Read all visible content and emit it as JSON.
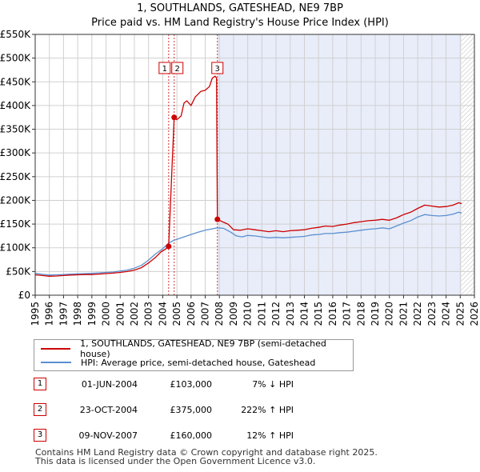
{
  "chart_data": {
    "type": "line",
    "title": "1, SOUTHLANDS, GATESHEAD, NE9 7BP",
    "subtitle": "Price paid vs. HM Land Registry's House Price Index (HPI)",
    "xlabel": "",
    "ylabel": "",
    "xlim": [
      1995,
      2026
    ],
    "ylim": [
      0,
      550000
    ],
    "y_ticks": [
      {
        "value": 0,
        "label": "£0"
      },
      {
        "value": 50000,
        "label": "£50K"
      },
      {
        "value": 100000,
        "label": "£100K"
      },
      {
        "value": 150000,
        "label": "£150K"
      },
      {
        "value": 200000,
        "label": "£200K"
      },
      {
        "value": 250000,
        "label": "£250K"
      },
      {
        "value": 300000,
        "label": "£300K"
      },
      {
        "value": 350000,
        "label": "£350K"
      },
      {
        "value": 400000,
        "label": "£400K"
      },
      {
        "value": 450000,
        "label": "£450K"
      },
      {
        "value": 500000,
        "label": "£500K"
      },
      {
        "value": 550000,
        "label": "£550K"
      }
    ],
    "x_ticks": [
      "1995",
      "1996",
      "1997",
      "1998",
      "1999",
      "2000",
      "2001",
      "2002",
      "2003",
      "2004",
      "2005",
      "2006",
      "2007",
      "2008",
      "2009",
      "2010",
      "2011",
      "2012",
      "2013",
      "2014",
      "2015",
      "2016",
      "2017",
      "2018",
      "2019",
      "2020",
      "2021",
      "2022",
      "2023",
      "2024",
      "2025",
      "2026"
    ],
    "grid": true,
    "shaded_after": 2007.86,
    "hatched_after": 2025.1,
    "series": [
      {
        "name": "1, SOUTHLANDS, GATESHEAD, NE9 7BP (semi-detached house)",
        "color": "#cc0000",
        "points": [
          [
            1995.0,
            43000
          ],
          [
            1995.5,
            41500
          ],
          [
            1996.0,
            40000
          ],
          [
            1996.5,
            40500
          ],
          [
            1997.0,
            41500
          ],
          [
            1997.5,
            42500
          ],
          [
            1998.0,
            43000
          ],
          [
            1998.5,
            43500
          ],
          [
            1999.0,
            43500
          ],
          [
            1999.5,
            44500
          ],
          [
            2000.0,
            45500
          ],
          [
            2000.5,
            46500
          ],
          [
            2001.0,
            48000
          ],
          [
            2001.5,
            50000
          ],
          [
            2002.0,
            53000
          ],
          [
            2002.5,
            58000
          ],
          [
            2003.0,
            68000
          ],
          [
            2003.5,
            80000
          ],
          [
            2003.9,
            92000
          ],
          [
            2004.2,
            97000
          ],
          [
            2004.42,
            103000
          ],
          [
            2004.81,
            375000
          ],
          [
            2005.0,
            370000
          ],
          [
            2005.3,
            378000
          ],
          [
            2005.5,
            405000
          ],
          [
            2005.7,
            410000
          ],
          [
            2006.0,
            400000
          ],
          [
            2006.3,
            418000
          ],
          [
            2006.7,
            430000
          ],
          [
            2007.0,
            432000
          ],
          [
            2007.3,
            440000
          ],
          [
            2007.5,
            458000
          ],
          [
            2007.7,
            462000
          ],
          [
            2007.8,
            458000
          ],
          [
            2007.86,
            160000
          ],
          [
            2008.2,
            155000
          ],
          [
            2008.6,
            150000
          ],
          [
            2009.0,
            138000
          ],
          [
            2009.5,
            137000
          ],
          [
            2010.0,
            140000
          ],
          [
            2010.5,
            138000
          ],
          [
            2011.0,
            136000
          ],
          [
            2011.5,
            134000
          ],
          [
            2012.0,
            136000
          ],
          [
            2012.5,
            134000
          ],
          [
            2013.0,
            136000
          ],
          [
            2013.5,
            137000
          ],
          [
            2014.0,
            138000
          ],
          [
            2014.5,
            141000
          ],
          [
            2015.0,
            143000
          ],
          [
            2015.5,
            146000
          ],
          [
            2016.0,
            145000
          ],
          [
            2016.5,
            148000
          ],
          [
            2017.0,
            150000
          ],
          [
            2017.5,
            153000
          ],
          [
            2018.0,
            155000
          ],
          [
            2018.5,
            157000
          ],
          [
            2019.0,
            158000
          ],
          [
            2019.5,
            160000
          ],
          [
            2020.0,
            158000
          ],
          [
            2020.5,
            163000
          ],
          [
            2021.0,
            170000
          ],
          [
            2021.5,
            175000
          ],
          [
            2022.0,
            183000
          ],
          [
            2022.5,
            190000
          ],
          [
            2023.0,
            188000
          ],
          [
            2023.5,
            186000
          ],
          [
            2024.0,
            187000
          ],
          [
            2024.5,
            190000
          ],
          [
            2024.9,
            195000
          ],
          [
            2025.1,
            193000
          ]
        ]
      },
      {
        "name": "HPI: Average price, semi-detached house, Gateshead",
        "color": "#5b8fd0",
        "points": [
          [
            1995.0,
            46000
          ],
          [
            1995.5,
            44000
          ],
          [
            1996.0,
            42500
          ],
          [
            1996.5,
            43000
          ],
          [
            1997.0,
            43500
          ],
          [
            1997.5,
            44500
          ],
          [
            1998.0,
            45000
          ],
          [
            1998.5,
            45500
          ],
          [
            1999.0,
            46000
          ],
          [
            1999.5,
            47000
          ],
          [
            2000.0,
            48000
          ],
          [
            2000.5,
            49000
          ],
          [
            2001.0,
            51000
          ],
          [
            2001.5,
            53000
          ],
          [
            2002.0,
            57000
          ],
          [
            2002.5,
            63000
          ],
          [
            2003.0,
            74000
          ],
          [
            2003.5,
            87000
          ],
          [
            2004.0,
            98000
          ],
          [
            2004.42,
            110000
          ],
          [
            2004.81,
            116000
          ],
          [
            2005.0,
            118000
          ],
          [
            2005.5,
            123000
          ],
          [
            2006.0,
            128000
          ],
          [
            2006.5,
            133000
          ],
          [
            2007.0,
            137000
          ],
          [
            2007.5,
            140000
          ],
          [
            2007.86,
            142000
          ],
          [
            2008.3,
            141000
          ],
          [
            2008.8,
            133000
          ],
          [
            2009.2,
            125000
          ],
          [
            2009.6,
            123000
          ],
          [
            2010.0,
            126000
          ],
          [
            2010.5,
            125000
          ],
          [
            2011.0,
            123000
          ],
          [
            2011.5,
            121000
          ],
          [
            2012.0,
            122000
          ],
          [
            2012.5,
            121000
          ],
          [
            2013.0,
            122000
          ],
          [
            2013.5,
            123000
          ],
          [
            2014.0,
            124000
          ],
          [
            2014.5,
            127000
          ],
          [
            2015.0,
            128000
          ],
          [
            2015.5,
            130000
          ],
          [
            2016.0,
            130000
          ],
          [
            2016.5,
            132000
          ],
          [
            2017.0,
            133000
          ],
          [
            2017.5,
            135000
          ],
          [
            2018.0,
            137000
          ],
          [
            2018.5,
            139000
          ],
          [
            2019.0,
            140000
          ],
          [
            2019.5,
            142000
          ],
          [
            2020.0,
            140000
          ],
          [
            2020.5,
            146000
          ],
          [
            2021.0,
            152000
          ],
          [
            2021.5,
            157000
          ],
          [
            2022.0,
            165000
          ],
          [
            2022.5,
            170000
          ],
          [
            2023.0,
            168000
          ],
          [
            2023.5,
            167000
          ],
          [
            2024.0,
            168000
          ],
          [
            2024.5,
            171000
          ],
          [
            2024.9,
            175000
          ],
          [
            2025.1,
            173000
          ]
        ]
      }
    ],
    "sale_points": [
      {
        "label": "1",
        "x": 2004.42,
        "y": 103000
      },
      {
        "label": "2",
        "x": 2004.81,
        "y": 375000
      },
      {
        "label": "3",
        "x": 2007.86,
        "y": 160000
      }
    ]
  },
  "legend": {
    "property_label": "1, SOUTHLANDS, GATESHEAD, NE9 7BP (semi-detached house)",
    "hpi_label": "HPI: Average price, semi-detached house, Gateshead"
  },
  "transactions": [
    {
      "num": "1",
      "date": "01-JUN-2004",
      "price": "£103,000",
      "hpi": "7% ↓ HPI"
    },
    {
      "num": "2",
      "date": "23-OCT-2004",
      "price": "£375,000",
      "hpi": "222% ↑ HPI"
    },
    {
      "num": "3",
      "date": "09-NOV-2007",
      "price": "£160,000",
      "hpi": "12% ↑ HPI"
    }
  ],
  "footer": {
    "line1": "Contains HM Land Registry data © Crown copyright and database right 2025.",
    "line2": "This data is licensed under the Open Government Licence v3.0."
  }
}
